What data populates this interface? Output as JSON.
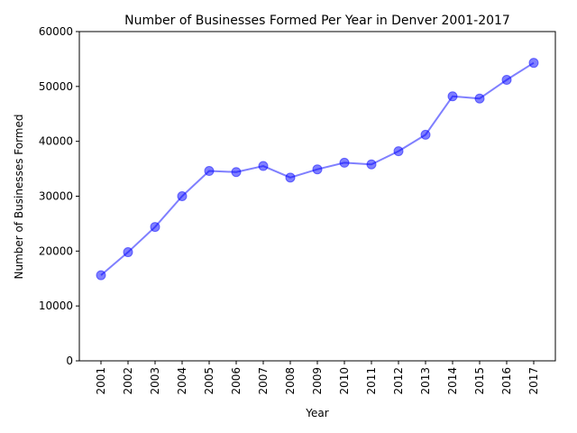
{
  "chart_data": {
    "type": "line",
    "title": "Number of Businesses Formed Per Year in Denver 2001-2017",
    "xlabel": "Year",
    "ylabel": "Number of Businesses Formed",
    "x": [
      "2001",
      "2002",
      "2003",
      "2004",
      "2005",
      "2006",
      "2007",
      "2008",
      "2009",
      "2010",
      "2011",
      "2012",
      "2013",
      "2014",
      "2015",
      "2016",
      "2017"
    ],
    "series": [
      {
        "values": [
          15600,
          19800,
          24400,
          30000,
          34600,
          34400,
          35500,
          33400,
          34900,
          36100,
          35800,
          38200,
          41200,
          48200,
          47800,
          51200,
          54300
        ],
        "color": "#0000ff"
      }
    ],
    "ylim": [
      0,
      60000
    ],
    "yticks": [
      "0",
      "10000",
      "20000",
      "30000",
      "40000",
      "50000",
      "60000"
    ],
    "grid": false,
    "legend": "none",
    "x_tick_rotation": "vertical"
  }
}
